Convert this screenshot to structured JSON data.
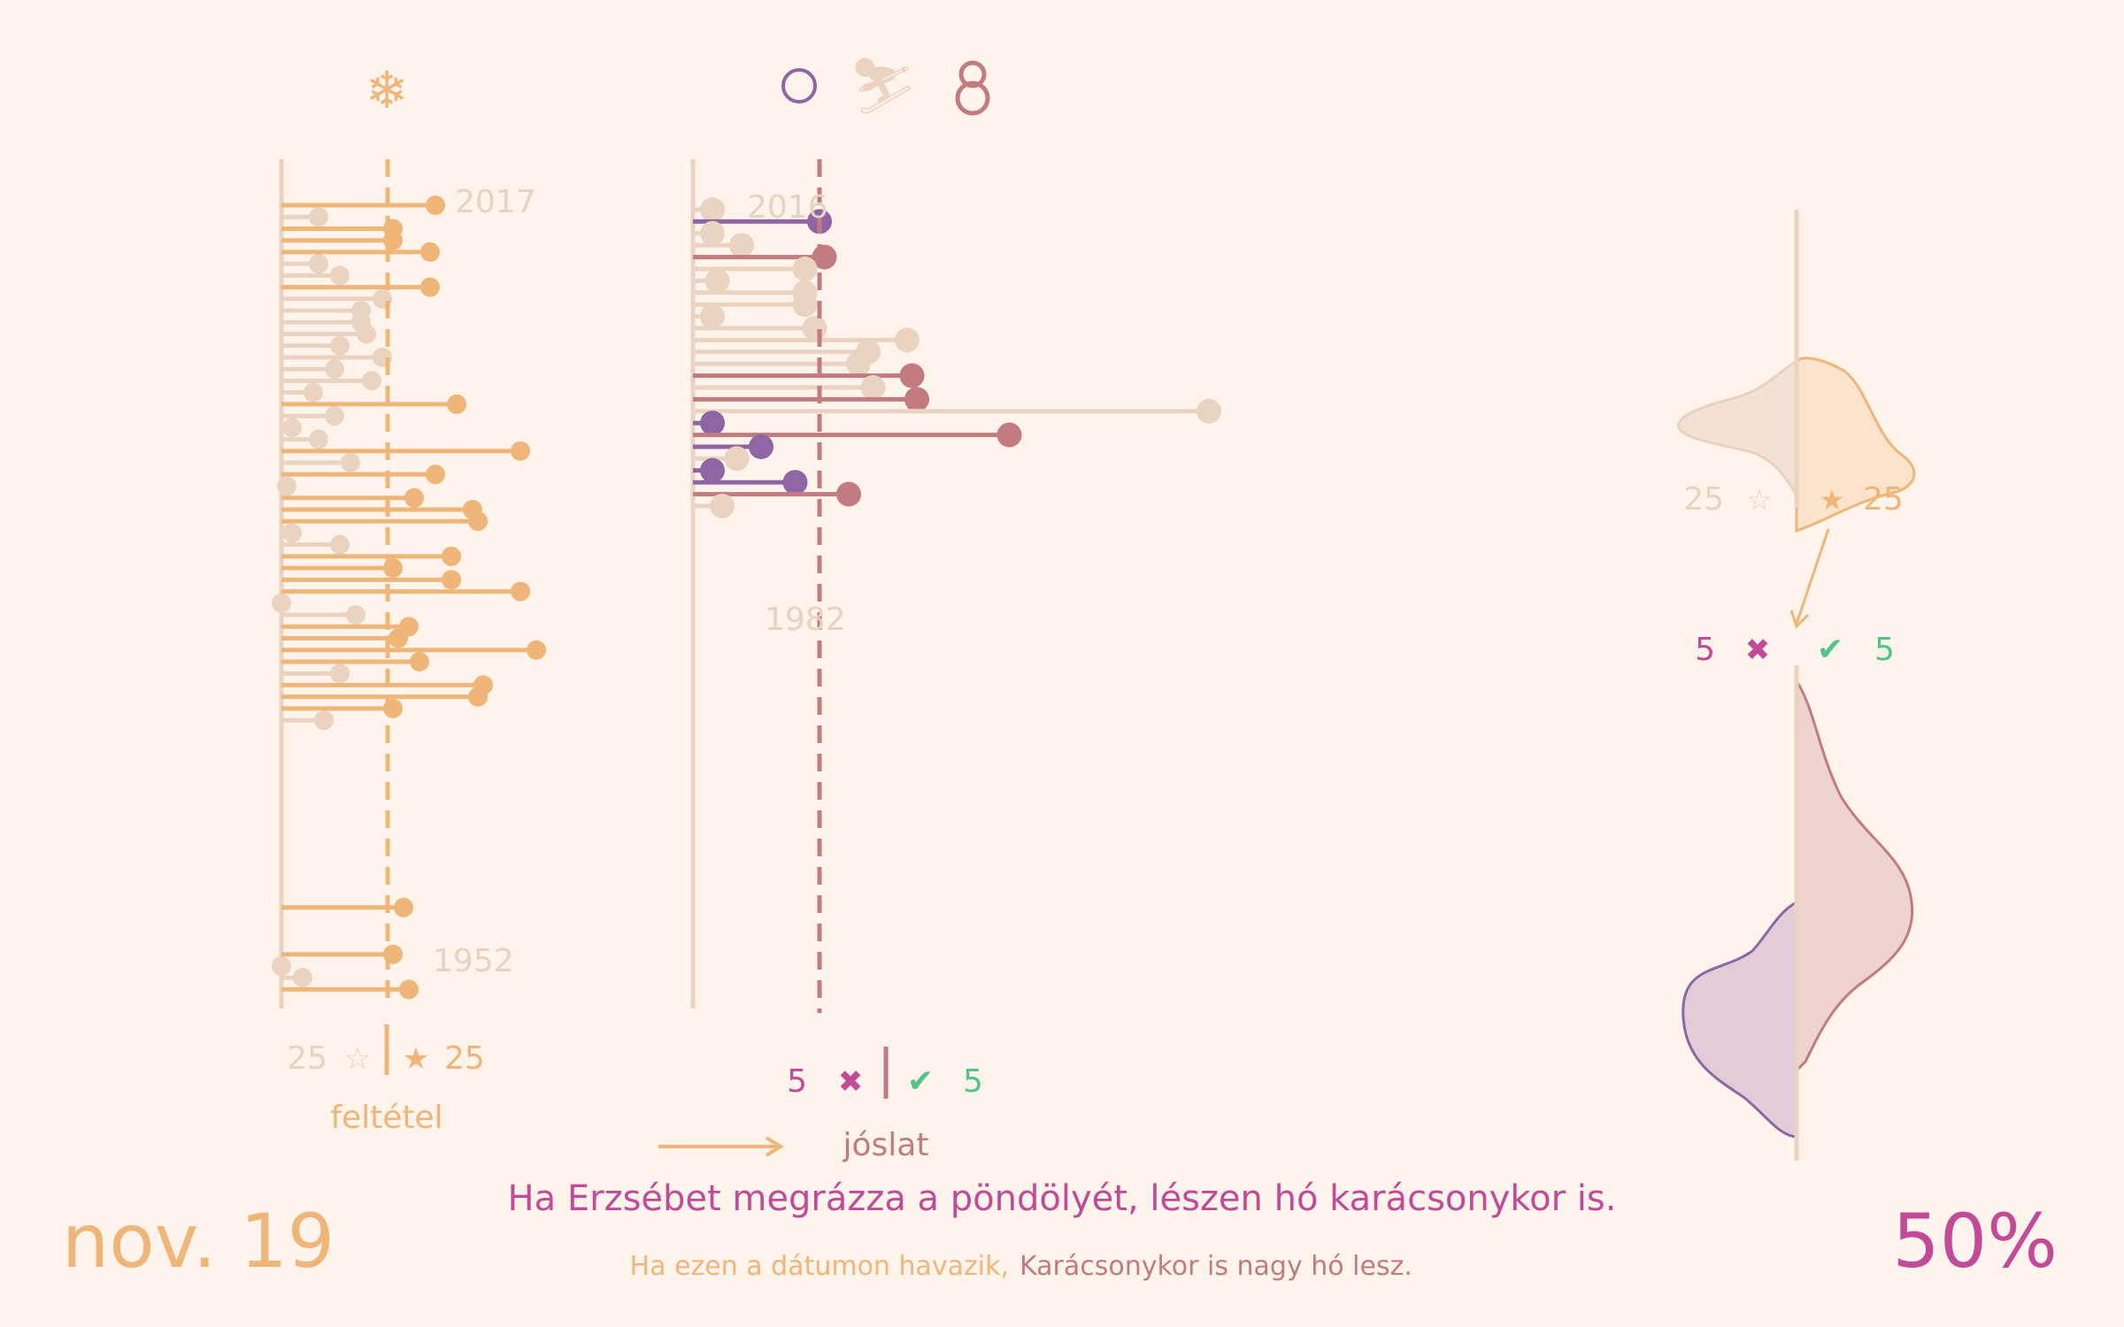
{
  "colors": {
    "background": "#fef4ec",
    "orange": "#f0b679",
    "beige": "#ebd3c1",
    "purple": "#8f66a4",
    "rose": "#c27b80",
    "magenta": "#c24a97",
    "green": "#52c48a",
    "label_grey": "#e8d2c0"
  },
  "icons": {
    "left": {
      "name": "snowflake-icon",
      "glyph": "❄"
    },
    "circle": {
      "name": "circle-icon"
    },
    "skier": {
      "name": "skier-icon",
      "glyph": "⛷"
    },
    "snowman": {
      "name": "snowman-icon"
    }
  },
  "chart_data": [
    {
      "type": "lollipop",
      "name": "feltetel",
      "title": "feltétel",
      "years_top": "2017",
      "years_bottom": "1952",
      "threshold_label": "feltétel",
      "counts": {
        "no_snow": "25",
        "no_symbol": "☆",
        "snow": "25",
        "snow_symbol": "★"
      },
      "x_threshold": 10,
      "series": [
        {
          "year": 2017,
          "value": 14.5
        },
        {
          "year": 2016,
          "value": 3.5
        },
        {
          "year": 2015,
          "value": 10.5
        },
        {
          "year": 2014,
          "value": 10.5
        },
        {
          "year": 2013,
          "value": 14
        },
        {
          "year": 2012,
          "value": 3.5
        },
        {
          "year": 2011,
          "value": 5.5
        },
        {
          "year": 2010,
          "value": 14
        },
        {
          "year": 2009,
          "value": 9.5
        },
        {
          "year": 2008,
          "value": 7.5
        },
        {
          "year": 2007,
          "value": 7.5
        },
        {
          "year": 2006,
          "value": 8
        },
        {
          "year": 2005,
          "value": 5.5
        },
        {
          "year": 2004,
          "value": 9.5
        },
        {
          "year": 2003,
          "value": 5
        },
        {
          "year": 2002,
          "value": 8.5
        },
        {
          "year": 2001,
          "value": 3
        },
        {
          "year": 2000,
          "value": 16.5
        },
        {
          "year": 1999,
          "value": 5
        },
        {
          "year": 1998,
          "value": 1
        },
        {
          "year": 1997,
          "value": 3.5
        },
        {
          "year": 1996,
          "value": 22.5
        },
        {
          "year": 1995,
          "value": 6.5
        },
        {
          "year": 1994,
          "value": 14.5
        },
        {
          "year": 1993,
          "value": 0.5
        },
        {
          "year": 1992,
          "value": 12.5
        },
        {
          "year": 1991,
          "value": 18
        },
        {
          "year": 1990,
          "value": 18.5
        },
        {
          "year": 1989,
          "value": 1
        },
        {
          "year": 1988,
          "value": 5.5
        },
        {
          "year": 1987,
          "value": 16
        },
        {
          "year": 1986,
          "value": 10.5
        },
        {
          "year": 1985,
          "value": 16
        },
        {
          "year": 1984,
          "value": 22.5
        },
        {
          "year": 1983,
          "value": 0
        },
        {
          "year": 1982,
          "value": 7
        },
        {
          "year": 1981,
          "value": 12
        },
        {
          "year": 1980,
          "value": 11
        },
        {
          "year": 1979,
          "value": 24
        },
        {
          "year": 1978,
          "value": 13
        },
        {
          "year": 1977,
          "value": 5.5
        },
        {
          "year": 1976,
          "value": 19
        },
        {
          "year": 1975,
          "value": 18.5
        },
        {
          "year": 1974,
          "value": 10.5
        },
        {
          "year": 1973,
          "value": 4
        },
        {
          "year": 1957,
          "value": 11.5
        },
        {
          "year": 1953,
          "value": 10.5
        },
        {
          "year": 1952,
          "value": 0
        },
        {
          "year": 1951,
          "value": 2
        },
        {
          "year": 1950,
          "value": 12
        }
      ]
    },
    {
      "type": "lollipop",
      "name": "joslat",
      "title": "jóslat",
      "years_top": "2016",
      "years_bottom": "1982",
      "counts": {
        "wrong": "5",
        "wrong_symbol": "✖",
        "right": "5",
        "right_symbol": "✔"
      },
      "x_threshold": 13,
      "series": [
        {
          "year": 2016,
          "value": 2,
          "status": "neutral"
        },
        {
          "year": 2015,
          "value": 13,
          "status": "miss"
        },
        {
          "year": 2014,
          "value": 2,
          "status": "neutral"
        },
        {
          "year": 2013,
          "value": 5,
          "status": "neutral"
        },
        {
          "year": 2012,
          "value": 13.5,
          "status": "hit"
        },
        {
          "year": 2011,
          "value": 11.5,
          "status": "neutral"
        },
        {
          "year": 2010,
          "value": 2.5,
          "status": "neutral"
        },
        {
          "year": 2009,
          "value": 11.5,
          "status": "neutral"
        },
        {
          "year": 2008,
          "value": 11.5,
          "status": "neutral"
        },
        {
          "year": 2007,
          "value": 2,
          "status": "neutral"
        },
        {
          "year": 2006,
          "value": 12.5,
          "status": "neutral"
        },
        {
          "year": 2005,
          "value": 22,
          "status": "neutral"
        },
        {
          "year": 2004,
          "value": 18,
          "status": "neutral"
        },
        {
          "year": 2003,
          "value": 17,
          "status": "neutral"
        },
        {
          "year": 2002,
          "value": 22.5,
          "status": "hit"
        },
        {
          "year": 2001,
          "value": 18.5,
          "status": "neutral"
        },
        {
          "year": 2000,
          "value": 23,
          "status": "hit"
        },
        {
          "year": 1999,
          "value": 53,
          "status": "neutral"
        },
        {
          "year": 1998,
          "value": 2,
          "status": "miss"
        },
        {
          "year": 1997,
          "value": 32.5,
          "status": "hit"
        },
        {
          "year": 1996,
          "value": 7,
          "status": "miss"
        },
        {
          "year": 1995,
          "value": 4.5,
          "status": "neutral"
        },
        {
          "year": 1994,
          "value": 2,
          "status": "miss"
        },
        {
          "year": 1993,
          "value": 10.5,
          "status": "miss"
        },
        {
          "year": 1992,
          "value": 16,
          "status": "hit"
        },
        {
          "year": 1991,
          "value": 3,
          "status": "neutral"
        }
      ]
    },
    {
      "type": "density",
      "name": "feltetel-distribution",
      "counts": {
        "left": "25",
        "left_symbol": "☆",
        "right": "25",
        "right_symbol": "★"
      }
    },
    {
      "type": "density",
      "name": "joslat-distribution",
      "counts": {
        "left": "5",
        "left_symbol": "✖",
        "right": "5",
        "right_symbol": "✔"
      }
    }
  ],
  "footer": {
    "date": "nov. 19",
    "saying": "Ha Erzsébet megrázza a pöndölyét, lészen hó karácsonykor is.",
    "condition_text": "Ha ezen a dátumon havazik,",
    "prediction_text": "Karácsonykor is nagy hó lesz.",
    "percent": "50%"
  }
}
